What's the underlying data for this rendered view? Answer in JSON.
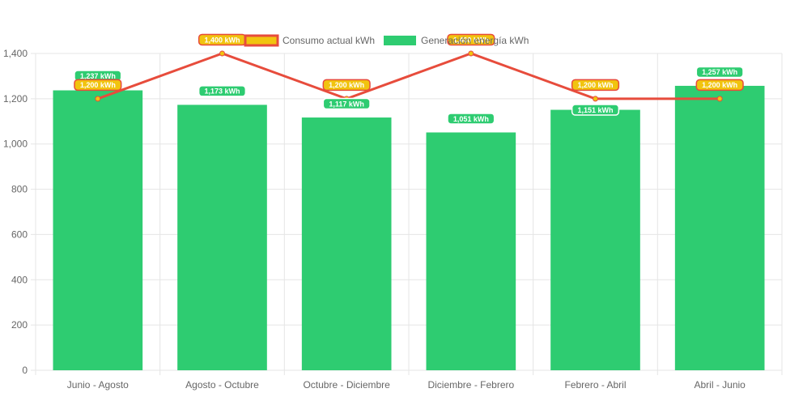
{
  "chart_data": {
    "type": "bar",
    "categories": [
      "Junio - Agosto",
      "Agosto - Octubre",
      "Octubre - Diciembre",
      "Diciembre - Febrero",
      "Febrero - Abril",
      "Abril - Junio"
    ],
    "series": [
      {
        "name": "Consumo actual kWh",
        "type": "line",
        "values": [
          1200,
          1400,
          1200,
          1400,
          1200,
          1200
        ],
        "labels": [
          "1,200 kWh",
          "1,400 kWh",
          "1,200 kWh",
          "1,400 kWh",
          "1,200 kWh",
          "1,200 kWh"
        ],
        "color": "#e74c3c",
        "point_color": "#f1c40f"
      },
      {
        "name": "Generación energía kWh",
        "type": "bar",
        "values": [
          1237,
          1173,
          1117,
          1051,
          1151,
          1257
        ],
        "labels": [
          "1,237 kWh",
          "1,173 kWh",
          "1,117 kWh",
          "1,051 kWh",
          "1,151 kWh",
          "1,257 kWh"
        ],
        "color": "#2ecc71"
      }
    ],
    "ylim": [
      0,
      1400
    ],
    "yticks": [
      "0",
      "200",
      "400",
      "600",
      "800",
      "1,000",
      "1,200",
      "1,400"
    ],
    "grid": true,
    "legend_position": "top",
    "xlabel": "",
    "ylabel": ""
  }
}
